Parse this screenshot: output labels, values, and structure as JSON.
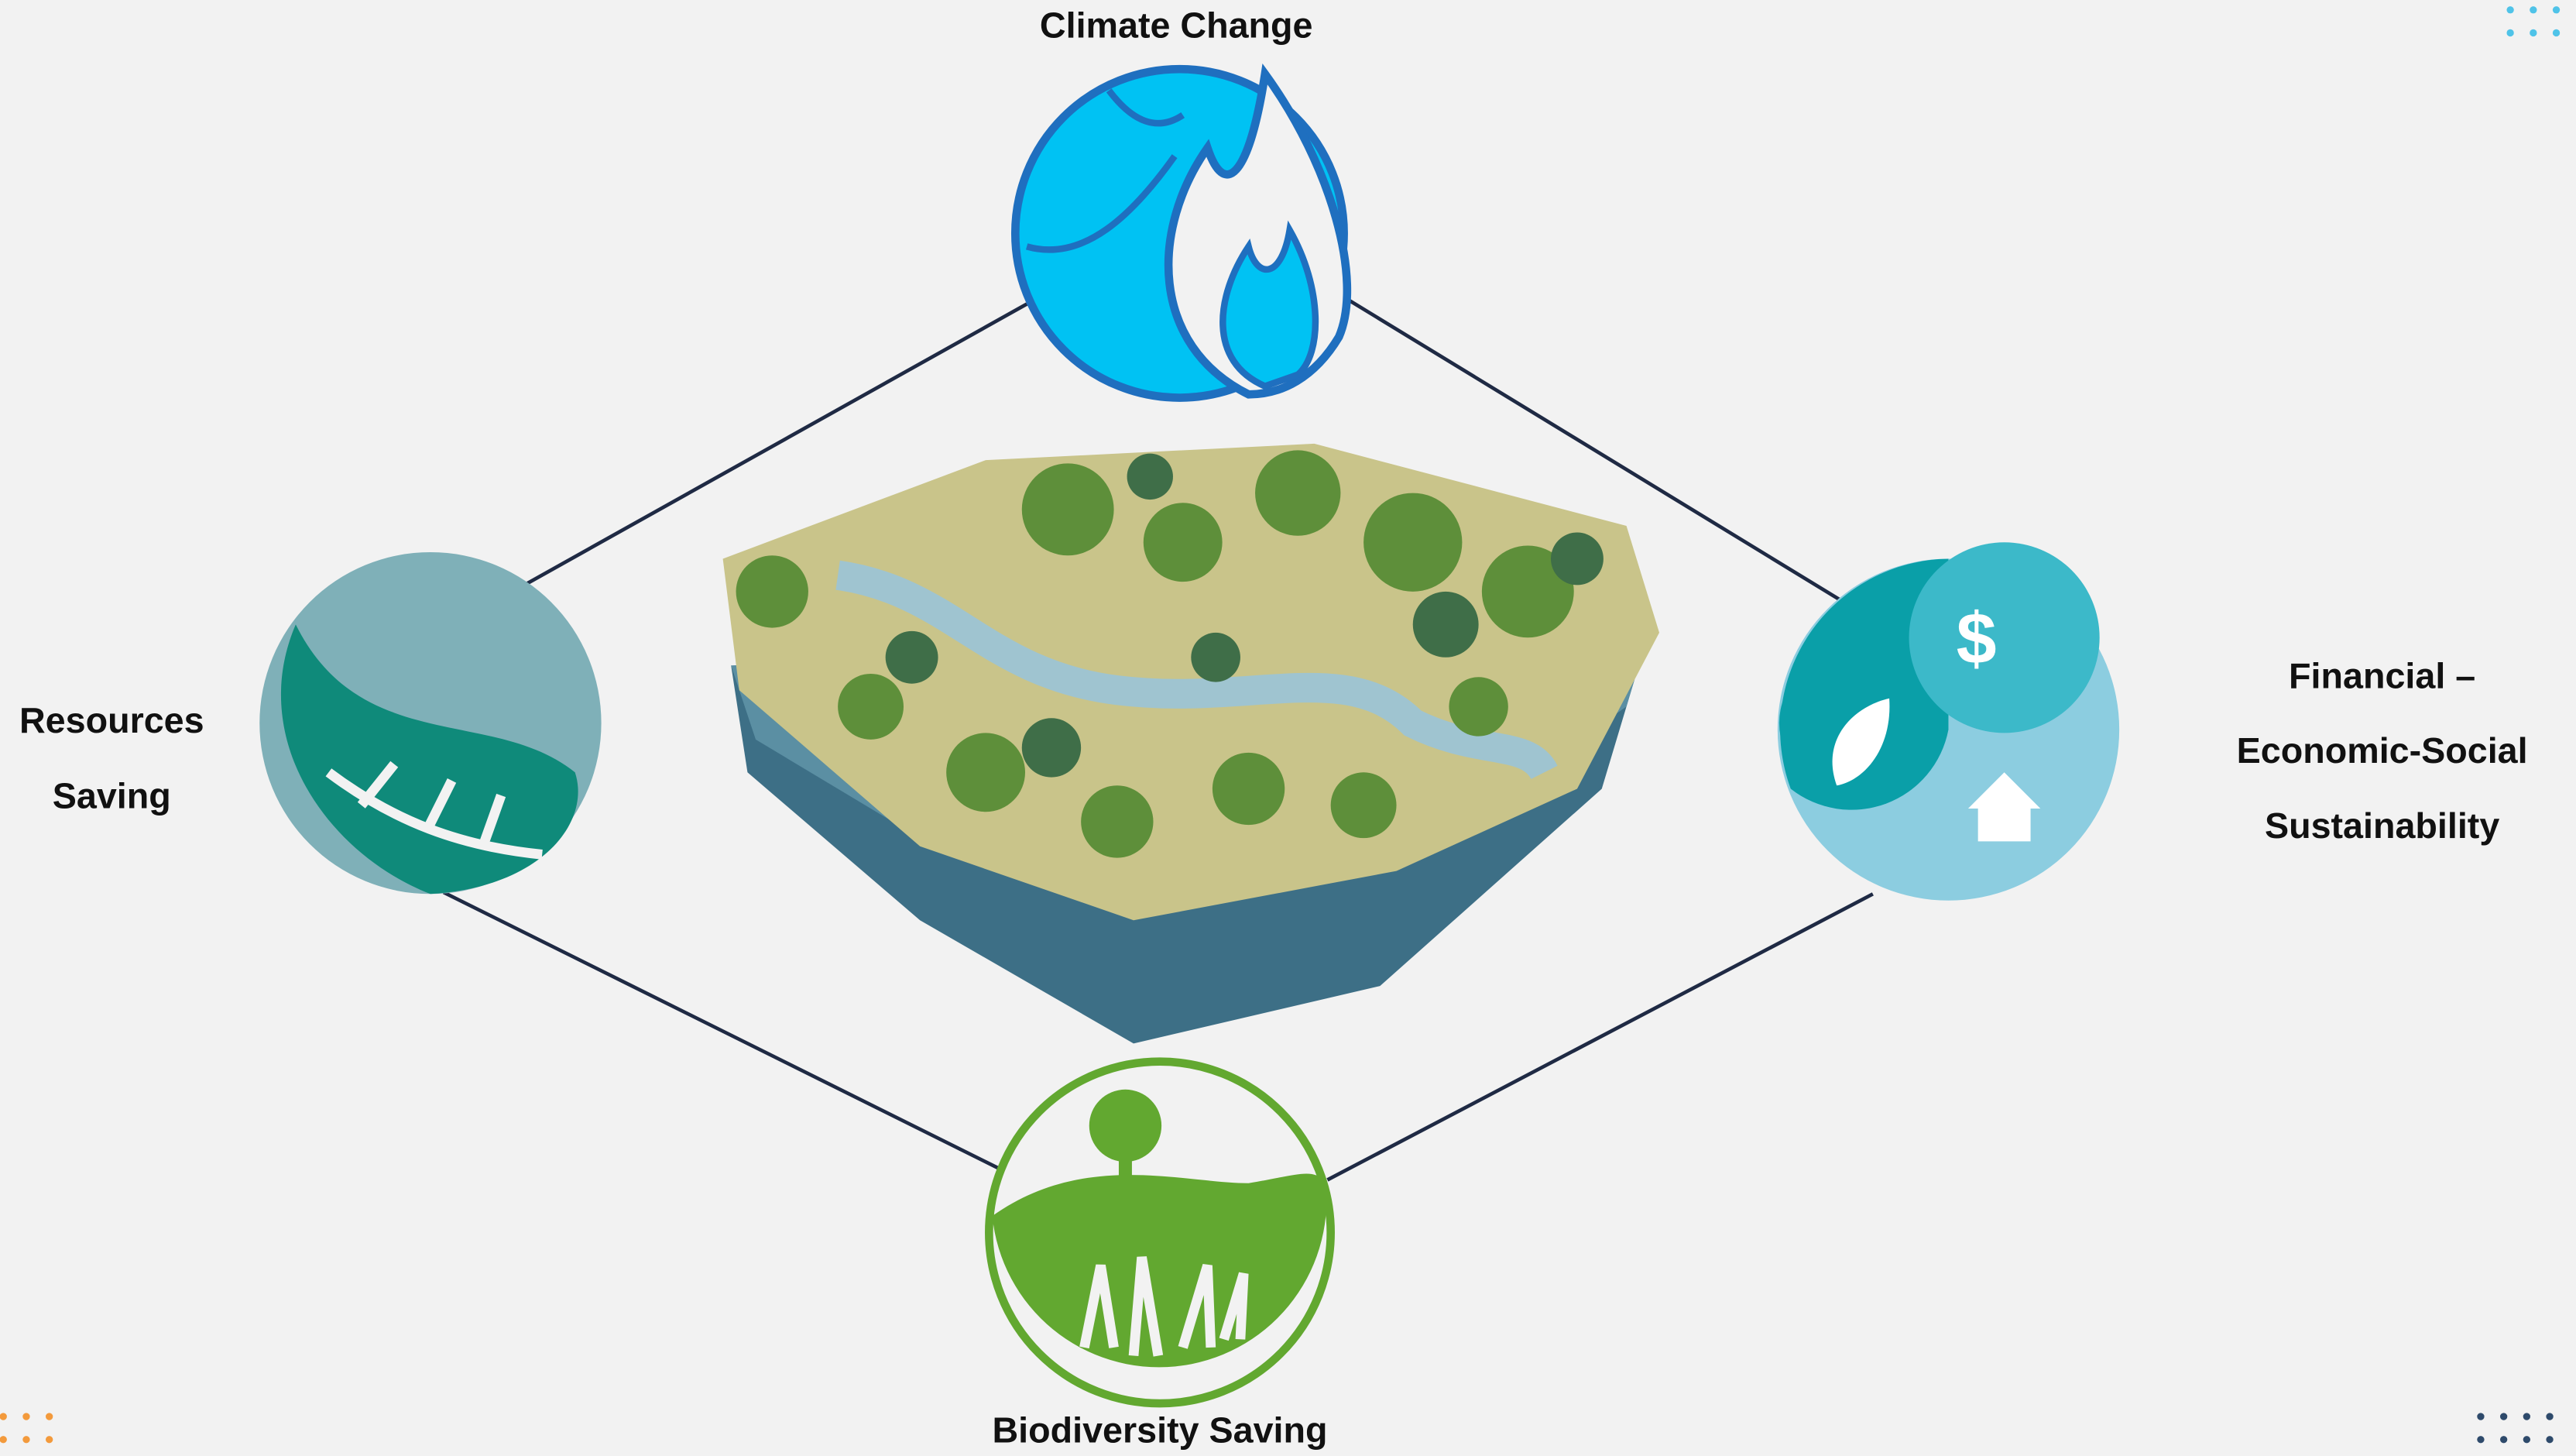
{
  "nodes": [
    {
      "label": [
        "Climate Change"
      ]
    },
    {
      "label": [
        "Resources",
        "Saving"
      ]
    },
    {
      "label": [
        "Financial –",
        "Economic-Social",
        "Sustainability"
      ]
    },
    {
      "label": [
        "Biodiversity Saving"
      ]
    }
  ]
}
